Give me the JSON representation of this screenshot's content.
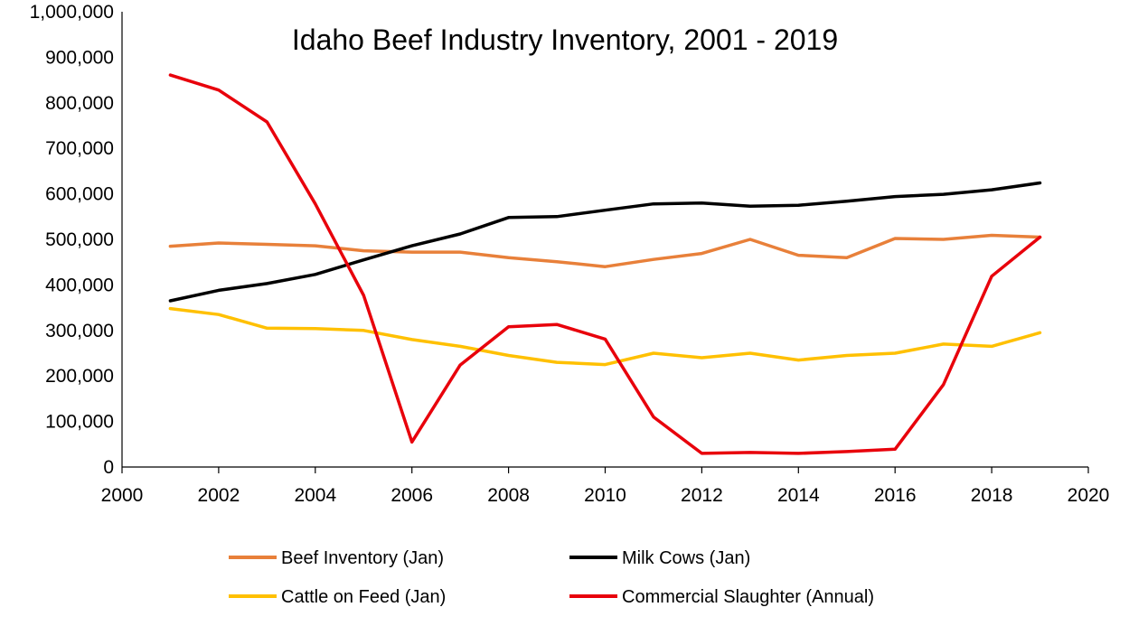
{
  "chart_data": {
    "type": "line",
    "title": "Idaho Beef Industry Inventory, 2001 - 2019",
    "xlabel": "",
    "ylabel": "",
    "xlim": [
      2000,
      2020
    ],
    "ylim": [
      0,
      1000000
    ],
    "x_ticks": [
      2000,
      2002,
      2004,
      2006,
      2008,
      2010,
      2012,
      2014,
      2016,
      2018,
      2020
    ],
    "y_ticks": [
      0,
      100000,
      200000,
      300000,
      400000,
      500000,
      600000,
      700000,
      800000,
      900000,
      1000000
    ],
    "grid": false,
    "legend_position": "bottom",
    "x": [
      2001,
      2002,
      2003,
      2004,
      2005,
      2006,
      2007,
      2008,
      2009,
      2010,
      2011,
      2012,
      2013,
      2014,
      2015,
      2016,
      2017,
      2018,
      2019
    ],
    "series": [
      {
        "name": "Beef Inventory (Jan)",
        "color": "#E8803A",
        "values": [
          485000,
          492000,
          489000,
          486000,
          475000,
          472000,
          472000,
          460000,
          451000,
          440000,
          456000,
          469000,
          500000,
          465000,
          460000,
          502000,
          500000,
          509000,
          505000
        ]
      },
      {
        "name": "Milk Cows (Jan)",
        "color": "#000000",
        "values": [
          365000,
          388000,
          403000,
          423000,
          455000,
          486000,
          512000,
          548000,
          550000,
          564000,
          578000,
          580000,
          573000,
          575000,
          584000,
          594000,
          599000,
          609000,
          624000
        ]
      },
      {
        "name": "Cattle on Feed (Jan)",
        "color": "#FFC000",
        "values": [
          348000,
          335000,
          305000,
          304000,
          300000,
          280000,
          265000,
          245000,
          230000,
          225000,
          250000,
          240000,
          250000,
          235000,
          245000,
          250000,
          270000,
          265000,
          295000
        ]
      },
      {
        "name": "Commercial Slaughter (Annual)",
        "color": "#E8000B",
        "values": [
          861000,
          828000,
          758000,
          578000,
          377000,
          55000,
          224000,
          308000,
          313000,
          281000,
          110000,
          30000,
          32000,
          30000,
          34000,
          39000,
          181000,
          419000,
          505000
        ]
      }
    ]
  }
}
